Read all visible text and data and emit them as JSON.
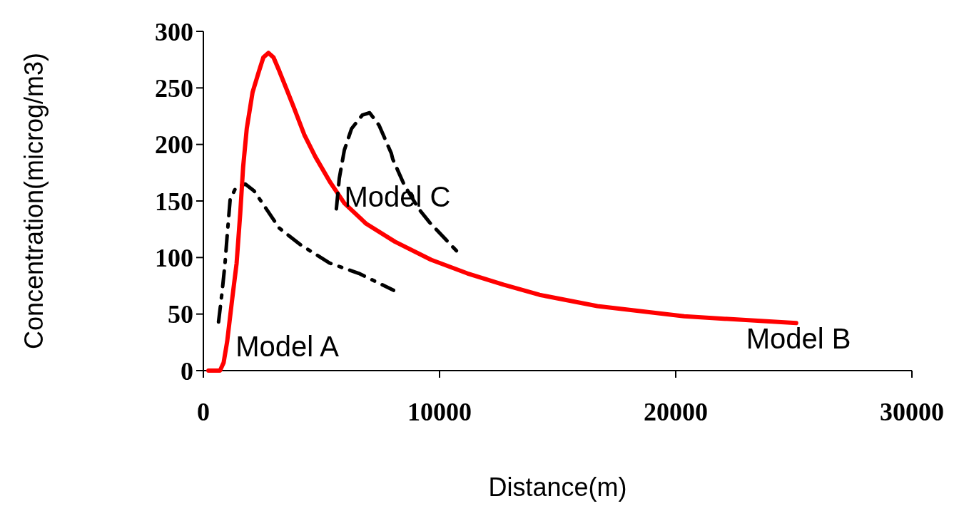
{
  "chart_data": {
    "type": "line",
    "xlabel": "Distance(m)",
    "ylabel": "Concentration(microg/m3)",
    "xlim": [
      0,
      30000
    ],
    "xticks": [
      0,
      10000,
      20000,
      30000
    ],
    "ylim": [
      0,
      300
    ],
    "yticks": [
      0,
      50,
      100,
      150,
      200,
      250,
      300
    ],
    "grid": false,
    "series": [
      {
        "name": "Model A",
        "color": "#000000",
        "line_style": "dashdot",
        "x": [
          643,
          796,
          918,
          1010,
          1133,
          1378,
          1775,
          2143,
          2602,
          3214,
          4132,
          5357,
          6581,
          8051
        ],
        "values": [
          43,
          70,
          95,
          120,
          151,
          162,
          165,
          159,
          145,
          126,
          111,
          95,
          86,
          71
        ]
      },
      {
        "name": "Model B",
        "color": "#ff0000",
        "line_style": "solid",
        "x": [
          214,
          704,
          857,
          1010,
          1225,
          1408,
          1561,
          1684,
          1837,
          2082,
          2357,
          2541,
          2755,
          2969,
          3214,
          3520,
          3826,
          4285,
          4744,
          5357,
          5969,
          6887,
          8112,
          9642,
          11173,
          12704,
          14234,
          16683,
          20357,
          25100
        ],
        "values": [
          0,
          0,
          7,
          26,
          64,
          95,
          139,
          180,
          214,
          246,
          265,
          277,
          281,
          277,
          265,
          249,
          233,
          208,
          189,
          167,
          148,
          130,
          114,
          98,
          86,
          76,
          67,
          57,
          48,
          42
        ]
      },
      {
        "name": "Model C",
        "color": "#000000",
        "line_style": "dashed",
        "x": [
          5632,
          5755,
          5969,
          6275,
          6734,
          7040,
          7438,
          7959,
          8020,
          8510,
          9121,
          9580,
          10713
        ],
        "values": [
          143,
          170,
          195,
          214,
          226,
          228,
          217,
          192,
          187,
          164,
          143,
          131,
          106
        ]
      }
    ]
  }
}
